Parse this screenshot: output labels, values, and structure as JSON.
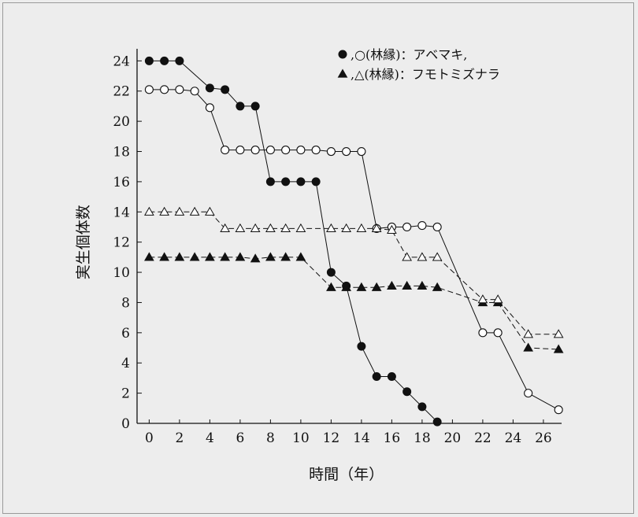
{
  "chart_data": {
    "type": "line",
    "xlabel": "時間（年）",
    "ylabel": "実生個体数",
    "xlim": [
      -0.8,
      27.2
    ],
    "ylim": [
      0,
      24.8
    ],
    "xticks": [
      0,
      2,
      4,
      6,
      8,
      10,
      12,
      14,
      16,
      18,
      20,
      22,
      24,
      26
    ],
    "yticks": [
      0,
      2,
      4,
      6,
      8,
      10,
      12,
      14,
      16,
      18,
      20,
      22,
      24
    ],
    "grid": false,
    "legend": {
      "placement": "top-right",
      "entries": [
        {
          "symbols": [
            "●",
            "○"
          ],
          "text": ",○(林縁)：アベマキ,"
        },
        {
          "symbols": [
            "▲",
            "△"
          ],
          "text": ",△(林縁)：フモトミズナラ"
        }
      ]
    },
    "series": [
      {
        "marker": "filled-circle",
        "style": "solid",
        "x": [
          0,
          1,
          2,
          4,
          5,
          6,
          7,
          8,
          9,
          10,
          11,
          12,
          13,
          14,
          15,
          16,
          17,
          18,
          19
        ],
        "y": [
          24,
          24,
          24,
          22.2,
          22.1,
          21,
          21,
          16,
          16,
          16,
          16,
          10,
          9.1,
          5.1,
          3.1,
          3.1,
          2.1,
          1.1,
          0.1
        ]
      },
      {
        "marker": "open-circle",
        "style": "solid",
        "x": [
          0,
          1,
          2,
          3,
          4,
          5,
          6,
          7,
          8,
          9,
          10,
          11,
          12,
          13,
          14,
          15,
          16,
          17,
          18,
          19,
          22,
          23,
          25,
          27
        ],
        "y": [
          22.1,
          22.1,
          22.1,
          22,
          20.9,
          18.1,
          18.1,
          18.1,
          18.1,
          18.1,
          18.1,
          18.1,
          18,
          18,
          18,
          12.9,
          13,
          13,
          13.1,
          13,
          6,
          6,
          2,
          0.9
        ]
      },
      {
        "marker": "filled-triangle",
        "style": "dashed",
        "x": [
          0,
          1,
          2,
          3,
          4,
          5,
          6,
          7,
          8,
          9,
          10,
          12,
          13,
          14,
          15,
          16,
          17,
          18,
          19,
          22,
          23,
          25,
          27
        ],
        "y": [
          11,
          11,
          11,
          11,
          11,
          11,
          11,
          10.9,
          11,
          11,
          11,
          9,
          9,
          9,
          9,
          9.1,
          9.1,
          9.1,
          9,
          8,
          8,
          5,
          4.9
        ]
      },
      {
        "marker": "open-triangle",
        "style": "dashed",
        "x": [
          0,
          1,
          2,
          3,
          4,
          5,
          6,
          7,
          8,
          9,
          10,
          12,
          13,
          14,
          15,
          16,
          17,
          18,
          19,
          22,
          23,
          25,
          27
        ],
        "y": [
          14,
          14,
          14,
          14,
          14,
          12.9,
          12.9,
          12.9,
          12.9,
          12.9,
          12.9,
          12.9,
          12.9,
          12.9,
          12.9,
          12.8,
          11,
          11,
          11,
          8.2,
          8.2,
          5.9,
          5.9
        ]
      }
    ]
  }
}
